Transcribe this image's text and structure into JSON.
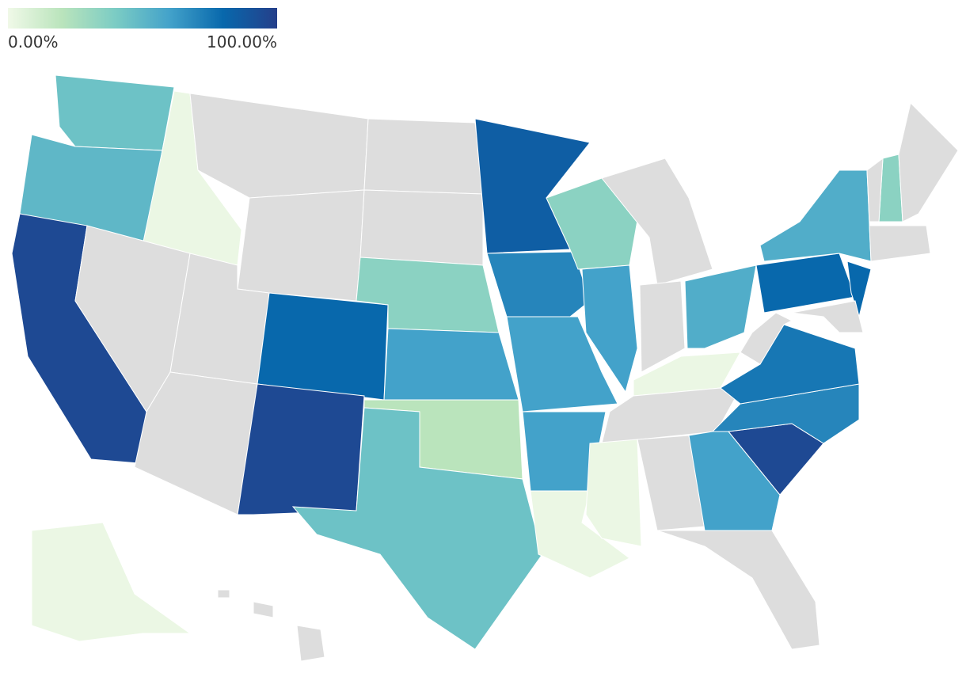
{
  "legend": {
    "min": {
      "value": 0,
      "label": "0.00%"
    },
    "max": {
      "value": 100,
      "label": "100.00%"
    },
    "colors": [
      "#f0f9e8",
      "#bae4bc",
      "#7bccc4",
      "#43a2ca",
      "#0868ac",
      "#253f8a"
    ],
    "no_data_color": "#dddddd"
  },
  "regions": [
    {
      "value": 45
    },
    {
      "value": 50
    },
    {
      "value": 95
    },
    {
      "value": 2
    },
    {
      "value": null
    },
    {
      "value": null
    },
    {
      "value": null
    },
    {
      "value": null
    },
    {
      "value": null
    },
    {
      "value": 80
    },
    {
      "value": 95
    },
    {
      "value": null
    },
    {
      "value": null
    },
    {
      "value": 35
    },
    {
      "value": 60
    },
    {
      "value": 20
    },
    {
      "value": 45
    },
    {
      "value": 85
    },
    {
      "value": 70
    },
    {
      "value": 60
    },
    {
      "value": 60
    },
    {
      "value": 2
    },
    {
      "value": 35
    },
    {
      "value": 60
    },
    {
      "value": null
    },
    {
      "value": null
    },
    {
      "value": 55
    },
    {
      "value": 2
    },
    {
      "value": null
    },
    {
      "value": 2
    },
    {
      "value": null
    },
    {
      "value": 60
    },
    {
      "value": null
    },
    {
      "value": 95
    },
    {
      "value": 70
    },
    {
      "value": 75
    },
    {
      "value": null
    },
    {
      "value": 80
    },
    {
      "value": 55
    },
    {
      "value": 80
    },
    {
      "value": null
    },
    {
      "value": 35
    },
    {
      "value": null
    },
    {
      "value": null
    },
    {
      "value": null
    },
    {
      "value": 2
    },
    {
      "value": null
    },
    {
      "value": null
    },
    {
      "value": null
    }
  ]
}
